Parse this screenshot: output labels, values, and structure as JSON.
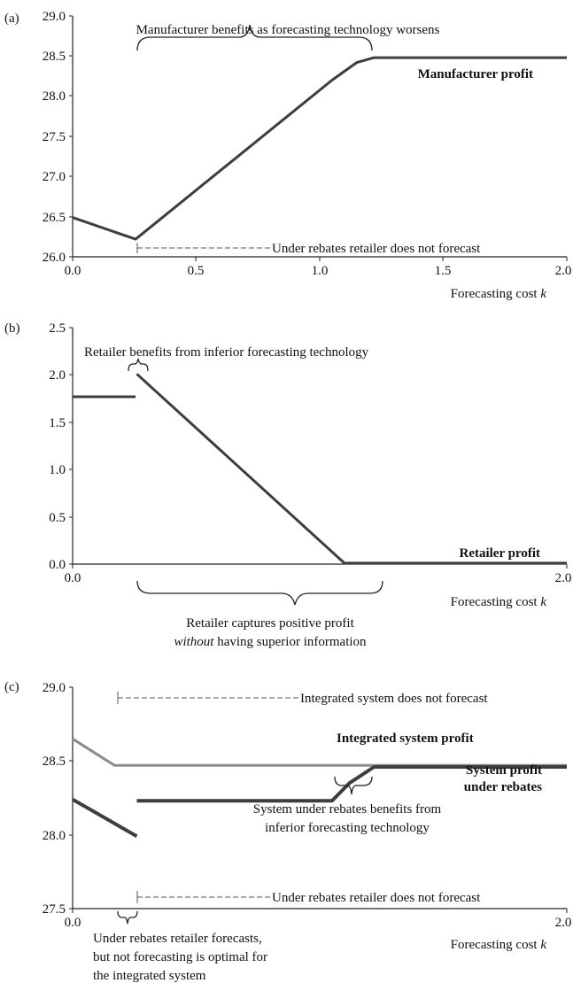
{
  "chart_data": [
    {
      "panel_label": "(a)",
      "type": "line",
      "xlabel": "Forecasting cost",
      "xlabel_var": "k",
      "xlim": [
        0,
        2
      ],
      "ylim": [
        26.0,
        29.0
      ],
      "x_ticks": [
        0,
        0.5,
        1.0,
        1.5,
        2.0
      ],
      "x_tick_labels": [
        "0.0",
        "0.5",
        "1.0",
        "1.5",
        "2.0"
      ],
      "y_ticks": [
        26.0,
        26.5,
        27.0,
        27.5,
        28.0,
        28.5,
        29.0
      ],
      "y_tick_labels": [
        "26.0",
        "26.5",
        "27.0",
        "27.5",
        "28.0",
        "28.5",
        "29.0"
      ],
      "grid": false,
      "series": [
        {
          "name": "Manufacturer profit",
          "color": "#3d3d3d",
          "segments": [
            [
              [
                0,
                26.49
              ],
              [
                0.255,
                26.22
              ],
              [
                1.05,
                28.2
              ],
              [
                1.15,
                28.42
              ],
              [
                1.22,
                28.48
              ],
              [
                2.0,
                28.48
              ]
            ]
          ]
        }
      ],
      "annotations": [
        {
          "text": "Manufacturer benefits as forecasting technology worsens",
          "type": "brace-over",
          "x_range": [
            0.26,
            1.22
          ]
        },
        {
          "text": "Under rebates retailer does not forecast",
          "type": "dashed-range",
          "x_range": [
            0.26,
            0.82
          ]
        }
      ]
    },
    {
      "panel_label": "(b)",
      "type": "line",
      "xlabel": "Forecasting cost",
      "xlabel_var": "k",
      "xlim": [
        0,
        2
      ],
      "ylim": [
        0,
        2.5
      ],
      "x_ticks": [
        0,
        2.0
      ],
      "x_tick_labels": [
        "0.0",
        "2.0"
      ],
      "y_ticks": [
        0,
        0.5,
        1.0,
        1.5,
        2.0,
        2.5
      ],
      "y_tick_labels": [
        "0.0",
        "0.5",
        "1.0",
        "1.5",
        "2.0",
        "2.5"
      ],
      "grid": false,
      "series": [
        {
          "name": "Retailer profit",
          "color": "#3d3d3d",
          "segments": [
            [
              [
                0,
                1.77
              ],
              [
                0.255,
                1.77
              ]
            ],
            [
              [
                0.26,
                2.01
              ],
              [
                1.1,
                0.01
              ],
              [
                2.0,
                0.01
              ]
            ]
          ]
        }
      ],
      "annotations": [
        {
          "text": "Retailer benefits from inferior forecasting technology",
          "type": "brace-over",
          "x_range": [
            0.22,
            0.3
          ]
        },
        {
          "text": "Retailer captures positive profit",
          "text_italic": "without",
          "text_rest": "having superior information",
          "type": "brace-under",
          "x_range": [
            0.26,
            1.1
          ]
        }
      ]
    },
    {
      "panel_label": "(c)",
      "type": "line",
      "xlabel": "Forecasting cost",
      "xlabel_var": "k",
      "xlim": [
        0,
        2
      ],
      "ylim": [
        27.5,
        29.0
      ],
      "x_ticks": [
        0,
        2.0
      ],
      "x_tick_labels": [
        "0.0",
        "2.0"
      ],
      "y_ticks": [
        27.5,
        28.0,
        28.5,
        29.0
      ],
      "y_tick_labels": [
        "27.5",
        "28.0",
        "28.5",
        "29.0"
      ],
      "grid": false,
      "series": [
        {
          "name": "Integrated system profit",
          "color": "#8c8c8c",
          "segments": [
            [
              [
                0,
                28.65
              ],
              [
                0.17,
                28.47
              ],
              [
                2.0,
                28.47
              ]
            ]
          ]
        },
        {
          "name": "System profit under rebates",
          "color": "#3d3d3d",
          "segments": [
            [
              [
                0,
                28.24
              ],
              [
                0.26,
                27.99
              ]
            ],
            [
              [
                0.26,
                28.23
              ],
              [
                1.05,
                28.23
              ],
              [
                1.12,
                28.35
              ],
              [
                1.22,
                28.46
              ],
              [
                2.0,
                28.46
              ]
            ]
          ]
        }
      ],
      "annotations": [
        {
          "text": "Integrated system does not forecast",
          "type": "dashed-range",
          "x_range": [
            0.17,
            0.92
          ]
        },
        {
          "text": "System under rebates benefits from inferior forecasting technology",
          "line1": "System under rebates benefits from",
          "line2": "inferior forecasting technology",
          "type": "brace-under",
          "x_range": [
            1.07,
            1.22
          ]
        },
        {
          "text": "Under rebates retailer does not forecast",
          "type": "dashed-range",
          "x_range": [
            0.26,
            0.82
          ]
        },
        {
          "text": "Under rebates retailer forecasts, but not forecasting is optimal for the integrated system",
          "line1": "Under rebates retailer forecasts,",
          "line2": "but not forecasting is optimal for",
          "line3": "the integrated system",
          "type": "brace-under",
          "x_range": [
            0.17,
            0.26
          ]
        }
      ]
    }
  ]
}
